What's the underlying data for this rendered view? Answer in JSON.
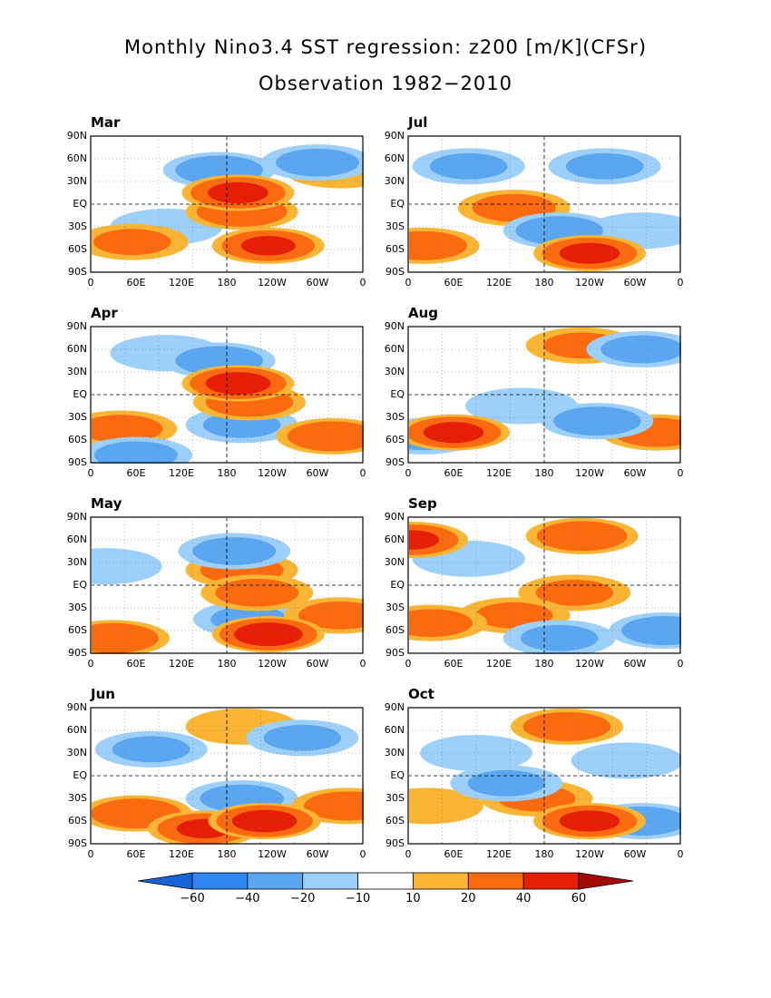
{
  "title": "Monthly Nino3.4 SST regression: z200 [m/K](CFSr)",
  "subtitle": "Observation 1982−2010",
  "chart_data": {
    "type": "heatmap",
    "xticks": [
      "0",
      "60E",
      "120E",
      "180",
      "120W",
      "60W",
      "0"
    ],
    "yticks": [
      "90N",
      "60N",
      "30N",
      "EQ",
      "30S",
      "60S",
      "90S"
    ],
    "xlim": [
      0,
      360
    ],
    "ylim": [
      -90,
      90
    ],
    "panels": [
      {
        "month": "Mar",
        "features": [
          {
            "lon": 195,
            "lat": 15,
            "value": 45
          },
          {
            "lon": 200,
            "lat": -10,
            "value": 35
          },
          {
            "lon": 235,
            "lat": -55,
            "value": 40
          },
          {
            "lon": 55,
            "lat": -50,
            "value": 20
          },
          {
            "lon": 170,
            "lat": 45,
            "value": -30
          },
          {
            "lon": 300,
            "lat": 55,
            "value": -25
          },
          {
            "lon": 100,
            "lat": -30,
            "value": -15
          },
          {
            "lon": 330,
            "lat": 45,
            "value": 15
          }
        ]
      },
      {
        "month": "Jul",
        "features": [
          {
            "lon": 240,
            "lat": -65,
            "value": 45
          },
          {
            "lon": 20,
            "lat": -55,
            "value": 30
          },
          {
            "lon": 140,
            "lat": -5,
            "value": 25
          },
          {
            "lon": 200,
            "lat": -35,
            "value": -30
          },
          {
            "lon": 80,
            "lat": 50,
            "value": -20
          },
          {
            "lon": 260,
            "lat": 50,
            "value": -20
          },
          {
            "lon": 310,
            "lat": -35,
            "value": -15
          }
        ]
      },
      {
        "month": "Apr",
        "features": [
          {
            "lon": 195,
            "lat": 15,
            "value": 50
          },
          {
            "lon": 210,
            "lat": -10,
            "value": 30
          },
          {
            "lon": 320,
            "lat": -55,
            "value": 35
          },
          {
            "lon": 40,
            "lat": -45,
            "value": 25
          },
          {
            "lon": 170,
            "lat": 45,
            "value": -30
          },
          {
            "lon": 200,
            "lat": -40,
            "value": -20
          },
          {
            "lon": 60,
            "lat": -80,
            "value": -25
          },
          {
            "lon": 100,
            "lat": 55,
            "value": -15
          }
        ]
      },
      {
        "month": "Aug",
        "features": [
          {
            "lon": 60,
            "lat": -50,
            "value": 45
          },
          {
            "lon": 330,
            "lat": -50,
            "value": 30
          },
          {
            "lon": 230,
            "lat": 65,
            "value": 20
          },
          {
            "lon": 250,
            "lat": -35,
            "value": -30
          },
          {
            "lon": 20,
            "lat": -55,
            "value": -25
          },
          {
            "lon": 310,
            "lat": 60,
            "value": -25
          },
          {
            "lon": 150,
            "lat": -15,
            "value": -10
          }
        ]
      },
      {
        "month": "May",
        "features": [
          {
            "lon": 235,
            "lat": -65,
            "value": 55
          },
          {
            "lon": 200,
            "lat": 20,
            "value": 25
          },
          {
            "lon": 220,
            "lat": -10,
            "value": 25
          },
          {
            "lon": 30,
            "lat": -70,
            "value": 35
          },
          {
            "lon": 330,
            "lat": -40,
            "value": 25
          },
          {
            "lon": 190,
            "lat": 45,
            "value": -25
          },
          {
            "lon": 210,
            "lat": -45,
            "value": -20
          },
          {
            "lon": 20,
            "lat": 25,
            "value": -15
          }
        ]
      },
      {
        "month": "Sep",
        "features": [
          {
            "lon": 230,
            "lat": 65,
            "value": 35
          },
          {
            "lon": 220,
            "lat": -10,
            "value": 20
          },
          {
            "lon": 30,
            "lat": -50,
            "value": 25
          },
          {
            "lon": 140,
            "lat": -40,
            "value": 20
          },
          {
            "lon": 340,
            "lat": -60,
            "value": -30
          },
          {
            "lon": 80,
            "lat": 35,
            "value": -15
          },
          {
            "lon": 200,
            "lat": -70,
            "value": -20
          },
          {
            "lon": 5,
            "lat": 60,
            "value": 40
          }
        ]
      },
      {
        "month": "Jun",
        "features": [
          {
            "lon": 230,
            "lat": -60,
            "value": 50
          },
          {
            "lon": 150,
            "lat": -70,
            "value": 40
          },
          {
            "lon": 60,
            "lat": -50,
            "value": 35
          },
          {
            "lon": 340,
            "lat": -40,
            "value": 30
          },
          {
            "lon": 200,
            "lat": 65,
            "value": 15
          },
          {
            "lon": 200,
            "lat": -30,
            "value": -25
          },
          {
            "lon": 80,
            "lat": 35,
            "value": -20
          },
          {
            "lon": 280,
            "lat": 50,
            "value": -20
          }
        ]
      },
      {
        "month": "Oct",
        "features": [
          {
            "lon": 240,
            "lat": -60,
            "value": 45
          },
          {
            "lon": 210,
            "lat": 65,
            "value": 30
          },
          {
            "lon": 170,
            "lat": -30,
            "value": 20
          },
          {
            "lon": 25,
            "lat": -40,
            "value": 15
          },
          {
            "lon": 310,
            "lat": -60,
            "value": -30
          },
          {
            "lon": 130,
            "lat": -10,
            "value": -20
          },
          {
            "lon": 90,
            "lat": 30,
            "value": -15
          },
          {
            "lon": 290,
            "lat": 20,
            "value": -15
          }
        ]
      }
    ],
    "colorbar": {
      "labels": [
        "−60",
        "−40",
        "−20",
        "−10",
        "10",
        "20",
        "40",
        "60"
      ],
      "colors": [
        "#1565d8",
        "#2f86f0",
        "#5ba6f0",
        "#9ccff9",
        "#ffffff",
        "#fbb534",
        "#fb6a0f",
        "#e61e06",
        "#a30a05"
      ]
    }
  }
}
